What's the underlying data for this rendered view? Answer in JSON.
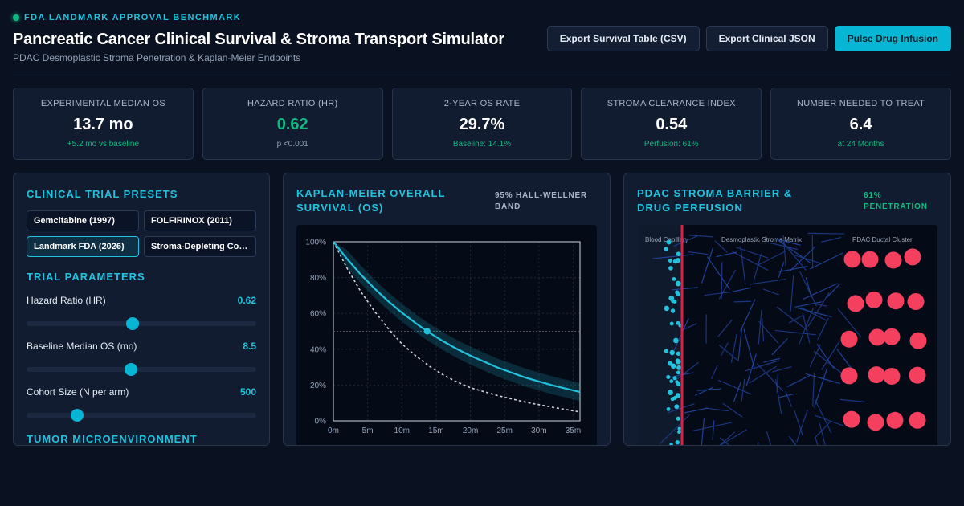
{
  "header": {
    "eyebrow": "FDA LANDMARK APPROVAL BENCHMARK",
    "title": "Pancreatic Cancer Clinical Survival & Stroma Transport Simulator",
    "subtitle": "PDAC Desmoplastic Stroma Penetration & Kaplan-Meier Endpoints",
    "actions": {
      "export_csv": "Export Survival Table (CSV)",
      "export_json": "Export Clinical JSON",
      "pulse": "Pulse Drug Infusion"
    }
  },
  "kpis": [
    {
      "label": "EXPERIMENTAL MEDIAN OS",
      "value": "13.7 mo",
      "sub": "+5.2 mo vs baseline"
    },
    {
      "label": "HAZARD RATIO (HR)",
      "value": "0.62",
      "sub": "p <0.001"
    },
    {
      "label": "2-YEAR OS RATE",
      "value": "29.7%",
      "sub": "Baseline: 14.1%"
    },
    {
      "label": "STROMA CLEARANCE INDEX",
      "value": "0.54",
      "sub": "Perfusion: 61%"
    },
    {
      "label": "NUMBER NEEDED TO TREAT",
      "value": "6.4",
      "sub": "at 24 Months"
    }
  ],
  "presets_panel": {
    "title": "CLINICAL TRIAL PRESETS",
    "presets": [
      "Gemcitabine (1997)",
      "FOLFIRINOX (2011)",
      "Landmark FDA (2026)",
      "Stroma-Depleting Combo"
    ],
    "active_preset": "Landmark FDA (2026)",
    "params_title": "TRIAL PARAMETERS",
    "params": [
      {
        "label": "Hazard Ratio (HR)",
        "value": "0.62",
        "fraction": 0.46
      },
      {
        "label": "Baseline Median OS (mo)",
        "value": "8.5",
        "fraction": 0.455
      },
      {
        "label": "Cohort Size (N per arm)",
        "value": "500",
        "fraction": 0.22
      }
    ],
    "next_section": "TUMOR MICROENVIRONMENT"
  },
  "km_panel": {
    "title": "KAPLAN-MEIER OVERALL SURVIVAL (OS)",
    "badge": "95% HALL-WELLNER BAND"
  },
  "stroma_panel": {
    "title": "PDAC STROMA BARRIER & DRUG PERFUSION",
    "badge": "61% PENETRATION",
    "zones": [
      "Blood Capillary",
      "Desmoplastic Stroma Matrix",
      "PDAC Ductal Cluster"
    ],
    "penetration": 0.61
  },
  "colors": {
    "accent": "#22c1dc",
    "success": "#10b981",
    "experimental_curve": "#22c1dc",
    "control_curve": "#cbd5e1",
    "barrier": "#e11d48",
    "tumor_cell": "#f43f5e",
    "fiber": "#1e3a8a"
  },
  "chart_data": {
    "type": "line",
    "xlabel": "",
    "ylabel": "",
    "x_ticks": [
      "0m",
      "5m",
      "10m",
      "15m",
      "20m",
      "25m",
      "30m",
      "35m"
    ],
    "y_ticks": [
      "100%",
      "80%",
      "60%",
      "40%",
      "20%",
      "0%"
    ],
    "xlim": [
      0,
      36
    ],
    "ylim": [
      0,
      100
    ],
    "median_line": 50,
    "series": [
      {
        "name": "",
        "role": "experimental",
        "x": [
          0,
          2,
          4,
          6,
          8,
          10,
          12,
          13.7,
          16,
          18,
          20,
          24,
          28,
          32,
          36
        ],
        "y": [
          100,
          90.4,
          81.7,
          73.9,
          66.8,
          60.4,
          54.6,
          50.0,
          44.5,
          40.2,
          36.4,
          29.7,
          24.2,
          19.8,
          16.1
        ]
      },
      {
        "name": "",
        "role": "control",
        "x": [
          0,
          2,
          4,
          6,
          8,
          10,
          12,
          14,
          16,
          18,
          20,
          24,
          28,
          32,
          36
        ],
        "y": [
          100,
          85.2,
          72.2,
          61.2,
          51.5,
          43.0,
          36.4,
          30.5,
          25.7,
          21.8,
          18.5,
          14.1,
          10.5,
          7.6,
          5.0
        ]
      }
    ],
    "band": {
      "role": "experimental",
      "lower_offset": 5,
      "upper_offset": 5
    }
  }
}
